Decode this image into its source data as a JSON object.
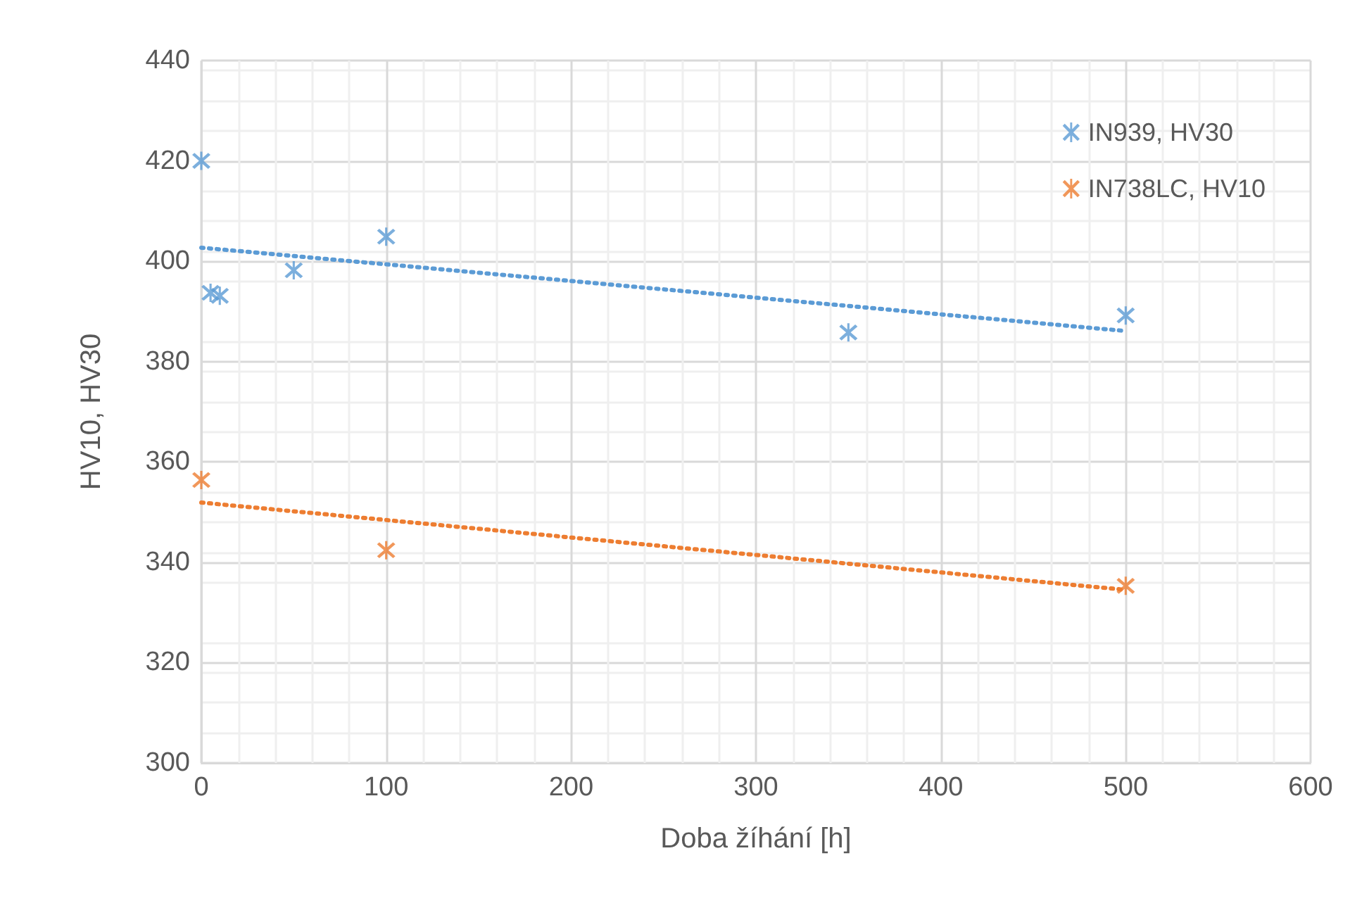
{
  "chart_data": {
    "type": "scatter",
    "xlabel": "Doba žíhání [h]",
    "ylabel": "HV10, HV30",
    "xlim": [
      0,
      600
    ],
    "xticks": [
      0,
      100,
      200,
      300,
      400,
      500,
      600
    ],
    "ylim": [
      300,
      440
    ],
    "yticks": [
      300,
      320,
      340,
      360,
      380,
      400,
      420,
      440
    ],
    "grid": true,
    "legend": "top right",
    "marker": "cross",
    "series": [
      {
        "name": "IN939, HV30",
        "color": "#5b9bd5",
        "x": [
          0,
          5,
          10,
          50,
          100,
          350,
          500
        ],
        "values": [
          420,
          393.7,
          393.1,
          398.2,
          404.9,
          385.8,
          389.2
        ]
      },
      {
        "name": "IN738LC, HV10",
        "color": "#ed7d31",
        "x": [
          0,
          100,
          500
        ],
        "values": [
          356.4,
          342.4,
          335.3
        ]
      },
      {
        "type": "line",
        "color": "#5b9bd5",
        "x": [
          0,
          500
        ],
        "values": [
          402.7,
          386.1
        ],
        "line_style": "dotted",
        "marker": "none"
      },
      {
        "type": "line",
        "color": "#ed7d31",
        "x": [
          0,
          500
        ],
        "values": [
          351.9,
          334.5
        ],
        "line_style": "dotted",
        "marker": "none"
      }
    ]
  }
}
